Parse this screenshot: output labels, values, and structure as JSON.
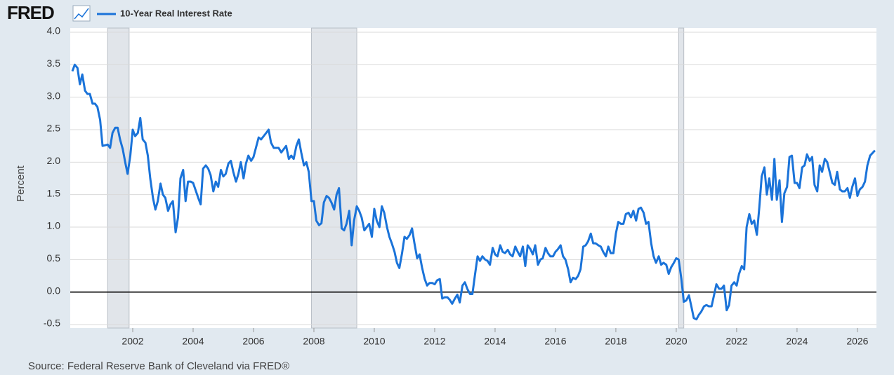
{
  "logo": "FRED",
  "source": "Source: Federal Reserve Bank of Cleveland via FRED®",
  "chart_data": {
    "type": "line",
    "ylabel": "Percent",
    "xlim": [
      1999.93,
      2026.63
    ],
    "ylim": [
      -0.5,
      4.0
    ],
    "xticks": [
      2002,
      2004,
      2006,
      2008,
      2010,
      2012,
      2014,
      2016,
      2018,
      2020,
      2022,
      2024,
      2026
    ],
    "yticks": [
      -0.5,
      {
        "value": 0,
        "label": "0.0"
      },
      0.5,
      {
        "value": 1,
        "label": "1.0"
      },
      1.5,
      {
        "value": 2,
        "label": "2.0"
      },
      2.5,
      {
        "value": 3,
        "label": "3.0"
      },
      3.5,
      {
        "value": 4,
        "label": "4.0"
      }
    ],
    "grid": true,
    "zero_line": true,
    "recessions": [
      [
        2001.17,
        2001.88
      ],
      [
        2007.92,
        2009.42
      ],
      [
        2020.08,
        2020.25
      ]
    ],
    "x": [
      2000.0,
      2000.08,
      2000.17,
      2000.25,
      2000.33,
      2000.42,
      2000.5,
      2000.58,
      2000.67,
      2000.75,
      2000.83,
      2000.92,
      2001.0,
      2001.17,
      2001.25,
      2001.33,
      2001.42,
      2001.5,
      2001.58,
      2001.67,
      2001.75,
      2001.83,
      2001.92,
      2002.0,
      2002.08,
      2002.17,
      2002.25,
      2002.33,
      2002.42,
      2002.5,
      2002.58,
      2002.67,
      2002.75,
      2002.83,
      2002.92,
      2003.0,
      2003.08,
      2003.17,
      2003.25,
      2003.33,
      2003.42,
      2003.5,
      2003.58,
      2003.67,
      2003.75,
      2003.83,
      2003.92,
      2004.0,
      2004.17,
      2004.25,
      2004.33,
      2004.42,
      2004.5,
      2004.58,
      2004.67,
      2004.75,
      2004.83,
      2004.92,
      2005.0,
      2005.08,
      2005.17,
      2005.25,
      2005.33,
      2005.42,
      2005.5,
      2005.58,
      2005.67,
      2005.75,
      2005.83,
      2005.92,
      2006.0,
      2006.17,
      2006.25,
      2006.42,
      2006.5,
      2006.58,
      2006.67,
      2006.83,
      2006.92,
      2007.0,
      2007.08,
      2007.17,
      2007.25,
      2007.33,
      2007.42,
      2007.5,
      2007.58,
      2007.67,
      2007.75,
      2007.83,
      2007.92,
      2008.0,
      2008.08,
      2008.17,
      2008.25,
      2008.33,
      2008.42,
      2008.5,
      2008.58,
      2008.67,
      2008.75,
      2008.83,
      2008.92,
      2009.0,
      2009.08,
      2009.17,
      2009.25,
      2009.33,
      2009.42,
      2009.5,
      2009.58,
      2009.67,
      2009.75,
      2009.83,
      2009.92,
      2010.0,
      2010.08,
      2010.17,
      2010.25,
      2010.33,
      2010.42,
      2010.5,
      2010.58,
      2010.67,
      2010.75,
      2010.83,
      2010.92,
      2011.0,
      2011.08,
      2011.17,
      2011.25,
      2011.33,
      2011.42,
      2011.5,
      2011.58,
      2011.67,
      2011.75,
      2011.83,
      2011.92,
      2012.0,
      2012.08,
      2012.17,
      2012.25,
      2012.33,
      2012.42,
      2012.5,
      2012.58,
      2012.67,
      2012.75,
      2012.83,
      2012.92,
      2013.0,
      2013.08,
      2013.17,
      2013.25,
      2013.33,
      2013.42,
      2013.5,
      2013.58,
      2013.67,
      2013.75,
      2013.83,
      2013.92,
      2014.0,
      2014.08,
      2014.17,
      2014.25,
      2014.33,
      2014.42,
      2014.5,
      2014.58,
      2014.67,
      2014.75,
      2014.83,
      2014.92,
      2015.0,
      2015.08,
      2015.17,
      2015.25,
      2015.33,
      2015.42,
      2015.5,
      2015.58,
      2015.67,
      2015.75,
      2015.83,
      2015.92,
      2016.0,
      2016.08,
      2016.17,
      2016.25,
      2016.33,
      2016.42,
      2016.5,
      2016.58,
      2016.67,
      2016.75,
      2016.83,
      2016.92,
      2017.0,
      2017.08,
      2017.17,
      2017.25,
      2017.33,
      2017.42,
      2017.5,
      2017.58,
      2017.67,
      2017.75,
      2017.83,
      2017.92,
      2018.0,
      2018.08,
      2018.17,
      2018.25,
      2018.33,
      2018.42,
      2018.5,
      2018.58,
      2018.67,
      2018.75,
      2018.83,
      2018.92,
      2019.0,
      2019.08,
      2019.17,
      2019.25,
      2019.33,
      2019.42,
      2019.5,
      2019.58,
      2019.67,
      2019.75,
      2019.83,
      2019.92,
      2020.0,
      2020.08,
      2020.17,
      2020.25,
      2020.33,
      2020.42,
      2020.5,
      2020.58,
      2020.67,
      2020.75,
      2020.83,
      2020.92,
      2021.0,
      2021.08,
      2021.17,
      2021.25,
      2021.33,
      2021.42,
      2021.5,
      2021.58,
      2021.67,
      2021.75,
      2021.83,
      2021.92,
      2022.0,
      2022.08,
      2022.17,
      2022.25,
      2022.33,
      2022.42,
      2022.5,
      2022.58,
      2022.67,
      2022.75,
      2022.83,
      2022.92,
      2023.0,
      2023.08,
      2023.17,
      2023.25,
      2023.33,
      2023.42,
      2023.5,
      2023.58,
      2023.67,
      2023.75,
      2023.83,
      2023.92,
      2024.0,
      2024.08,
      2024.17,
      2024.25,
      2024.33,
      2024.42,
      2024.5,
      2024.58,
      2024.67,
      2024.75,
      2024.83,
      2024.92,
      2025.0,
      2025.08,
      2025.17,
      2025.25,
      2025.33,
      2025.42,
      2025.5,
      2025.58,
      2025.67,
      2025.75,
      2025.83,
      2025.92,
      2026.0,
      2026.08,
      2026.17,
      2026.25,
      2026.33,
      2026.42,
      2026.58
    ],
    "series": [
      {
        "name": "10-Year Real Interest Rate",
        "color": "#1a73d9",
        "values": [
          3.4,
          3.5,
          3.45,
          3.2,
          3.35,
          3.1,
          3.05,
          3.05,
          2.9,
          2.9,
          2.85,
          2.65,
          2.25,
          2.27,
          2.22,
          2.45,
          2.53,
          2.53,
          2.35,
          2.2,
          2.0,
          1.82,
          2.1,
          2.5,
          2.4,
          2.45,
          2.68,
          2.35,
          2.3,
          2.1,
          1.75,
          1.45,
          1.27,
          1.4,
          1.67,
          1.5,
          1.45,
          1.25,
          1.35,
          1.4,
          0.92,
          1.15,
          1.75,
          1.88,
          1.4,
          1.7,
          1.7,
          1.68,
          1.45,
          1.35,
          1.9,
          1.95,
          1.9,
          1.8,
          1.55,
          1.7,
          1.62,
          1.88,
          1.78,
          1.82,
          1.98,
          2.02,
          1.85,
          1.7,
          1.82,
          2.0,
          1.75,
          1.98,
          2.1,
          2.02,
          2.08,
          2.38,
          2.35,
          2.45,
          2.5,
          2.3,
          2.22,
          2.22,
          2.15,
          2.2,
          2.25,
          2.05,
          2.1,
          2.05,
          2.25,
          2.35,
          2.15,
          1.95,
          2.0,
          1.85,
          1.4,
          1.4,
          1.1,
          1.03,
          1.06,
          1.38,
          1.48,
          1.45,
          1.38,
          1.27,
          1.5,
          1.6,
          0.98,
          0.95,
          1.05,
          1.25,
          0.72,
          1.1,
          1.32,
          1.25,
          1.15,
          0.95,
          1.0,
          1.05,
          0.85,
          1.28,
          1.1,
          1.0,
          1.32,
          1.22,
          1.0,
          0.85,
          0.75,
          0.62,
          0.45,
          0.37,
          0.6,
          0.85,
          0.82,
          0.88,
          0.98,
          0.75,
          0.52,
          0.58,
          0.38,
          0.2,
          0.1,
          0.14,
          0.14,
          0.12,
          0.18,
          0.2,
          -0.1,
          -0.08,
          -0.08,
          -0.12,
          -0.18,
          -0.1,
          -0.04,
          -0.16,
          0.1,
          0.15,
          0.05,
          -0.03,
          -0.03,
          0.25,
          0.55,
          0.48,
          0.55,
          0.5,
          0.48,
          0.42,
          0.68,
          0.58,
          0.55,
          0.72,
          0.62,
          0.6,
          0.65,
          0.58,
          0.55,
          0.7,
          0.62,
          0.55,
          0.7,
          0.4,
          0.72,
          0.66,
          0.58,
          0.72,
          0.42,
          0.5,
          0.52,
          0.68,
          0.6,
          0.55,
          0.55,
          0.62,
          0.66,
          0.72,
          0.55,
          0.5,
          0.35,
          0.15,
          0.22,
          0.2,
          0.25,
          0.35,
          0.7,
          0.72,
          0.78,
          0.9,
          0.75,
          0.75,
          0.72,
          0.7,
          0.62,
          0.55,
          0.7,
          0.6,
          0.6,
          0.9,
          1.08,
          1.05,
          1.05,
          1.2,
          1.22,
          1.15,
          1.25,
          1.1,
          1.28,
          1.3,
          1.22,
          1.05,
          1.08,
          0.75,
          0.55,
          0.45,
          0.55,
          0.42,
          0.45,
          0.42,
          0.28,
          0.38,
          0.45,
          0.52,
          0.5,
          0.2,
          -0.15,
          -0.13,
          -0.05,
          -0.22,
          -0.4,
          -0.42,
          -0.35,
          -0.3,
          -0.22,
          -0.2,
          -0.22,
          -0.22,
          -0.05,
          0.12,
          0.05,
          0.05,
          0.1,
          -0.28,
          -0.2,
          0.1,
          0.15,
          0.1,
          0.28,
          0.4,
          0.35,
          1.0,
          1.2,
          1.05,
          1.1,
          0.88,
          1.3,
          1.78,
          1.92,
          1.5,
          1.75,
          1.42,
          2.05,
          1.42,
          1.72,
          1.08,
          1.52,
          1.62,
          2.08,
          2.1,
          1.68,
          1.68,
          1.6,
          1.92,
          1.95,
          2.12,
          2.02,
          2.08,
          1.65,
          1.55,
          1.95,
          1.85,
          2.05,
          2.0,
          1.85,
          1.68,
          1.65,
          1.85,
          1.58,
          1.55,
          1.55,
          1.6,
          1.45,
          1.62,
          1.75,
          1.48,
          1.58,
          1.62,
          1.7,
          1.95,
          2.1,
          2.18
        ]
      }
    ]
  }
}
